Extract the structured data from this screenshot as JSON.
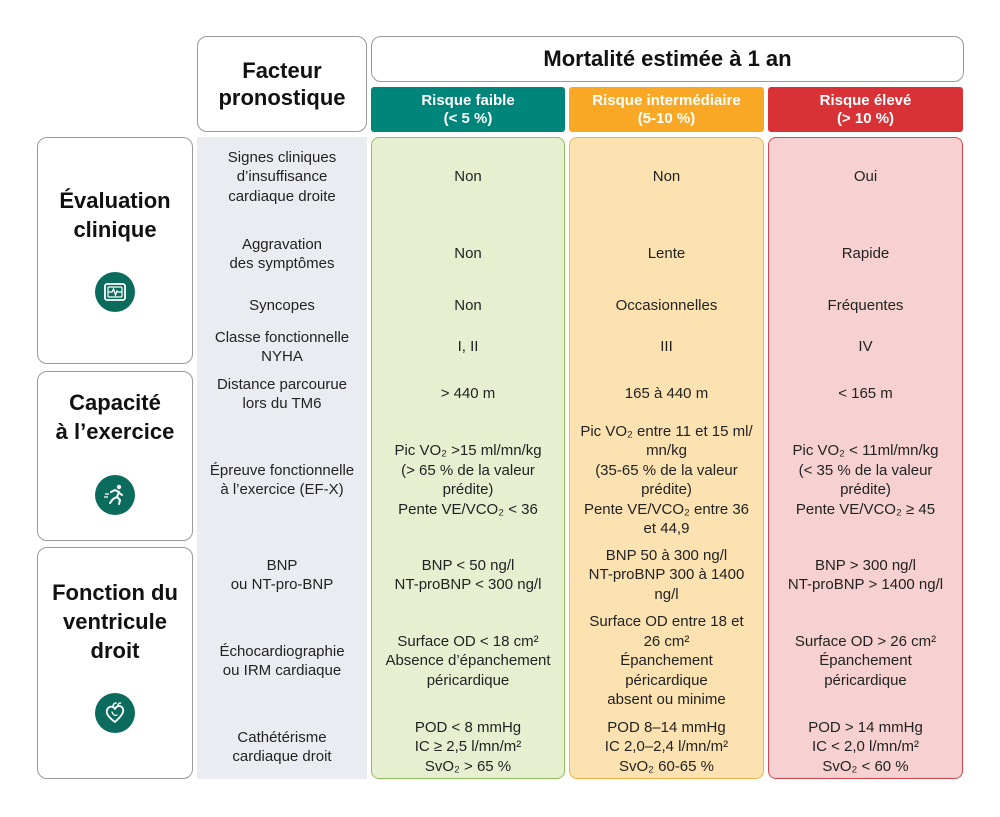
{
  "header": {
    "factor_title": "Facteur\npronostique",
    "mortality_title": "Mortalité estimée à 1 an",
    "risk_low": "Risque faible\n(< 5 %)",
    "risk_mid": "Risque intermédiaire\n(5-10 %)",
    "risk_high": "Risque élevé\n(> 10 %)"
  },
  "categories": [
    {
      "title": "Évaluation\nclinique",
      "icon": "monitor-heartbeat-icon"
    },
    {
      "title": "Capacité\nà l’exercice",
      "icon": "runner-icon"
    },
    {
      "title": "Fonction du\nventricule\ndroit",
      "icon": "heart-icon"
    }
  ],
  "rows": [
    {
      "factor": "Signes cliniques\nd’insuffisance\ncardiaque droite",
      "low": "Non",
      "mid": "Non",
      "high": "Oui"
    },
    {
      "factor": "Aggravation\ndes symptômes",
      "low": "Non",
      "mid": "Lente",
      "high": "Rapide"
    },
    {
      "factor": "Syncopes",
      "low": "Non",
      "mid": "Occasionnelles",
      "high": "Fréquentes"
    },
    {
      "factor": "Classe fonctionnelle\nNYHA",
      "low": "I, II",
      "mid": "III",
      "high": "IV"
    },
    {
      "factor": "Distance parcourue\nlors du TM6",
      "low": "> 440 m",
      "mid": "165 à 440 m",
      "high": "< 165 m"
    },
    {
      "factor": "Épreuve fonctionnelle\nà l’exercice (EF-X)",
      "low": "Pic VO₂ >15 ml/mn/kg\n(> 65 % de la valeur\nprédite)\nPente VE/VCO₂ < 36",
      "mid": "Pic VO₂ entre 11 et 15 ml/\nmn/kg\n(35-65 % de la valeur\nprédite)\nPente VE/VCO₂ entre 36\net 44,9",
      "high": "Pic VO₂ < 11ml/mn/kg\n(< 35 % de la valeur\nprédite)\nPente VE/VCO₂ ≥ 45"
    },
    {
      "factor": "BNP\nou NT-pro-BNP",
      "low": "BNP < 50 ng/l\nNT-proBNP < 300 ng/l",
      "mid": "BNP 50 à 300 ng/l\nNT-proBNP 300 à 1400\nng/l",
      "high": "BNP > 300 ng/l\nNT-proBNP > 1400 ng/l"
    },
    {
      "factor": "Échocardiographie\nou IRM cardiaque",
      "low": "Surface OD < 18 cm²\nAbsence d’épanchement\npéricardique",
      "mid": "Surface OD entre 18 et\n26 cm²\nÉpanchement\npéricardique\nabsent ou minime",
      "high": "Surface OD > 26 cm²\nÉpanchement\npéricardique"
    },
    {
      "factor": "Cathétérisme\ncardiaque droit",
      "low": "POD < 8 mmHg\nIC ≥ 2,5 l/mn/m²\nSvO₂ > 65 %",
      "mid": "POD 8–14 mmHg\nIC 2,0–2,4 l/mn/m²\nSvO₂ 60-65 %",
      "high": "POD > 14 mmHg\nIC < 2,0 l/mn/m²\nSvO₂ < 60 %"
    }
  ],
  "colors": {
    "low": "#00857a",
    "mid": "#f9a825",
    "high": "#d83236",
    "icon": "#0b6b5c"
  }
}
